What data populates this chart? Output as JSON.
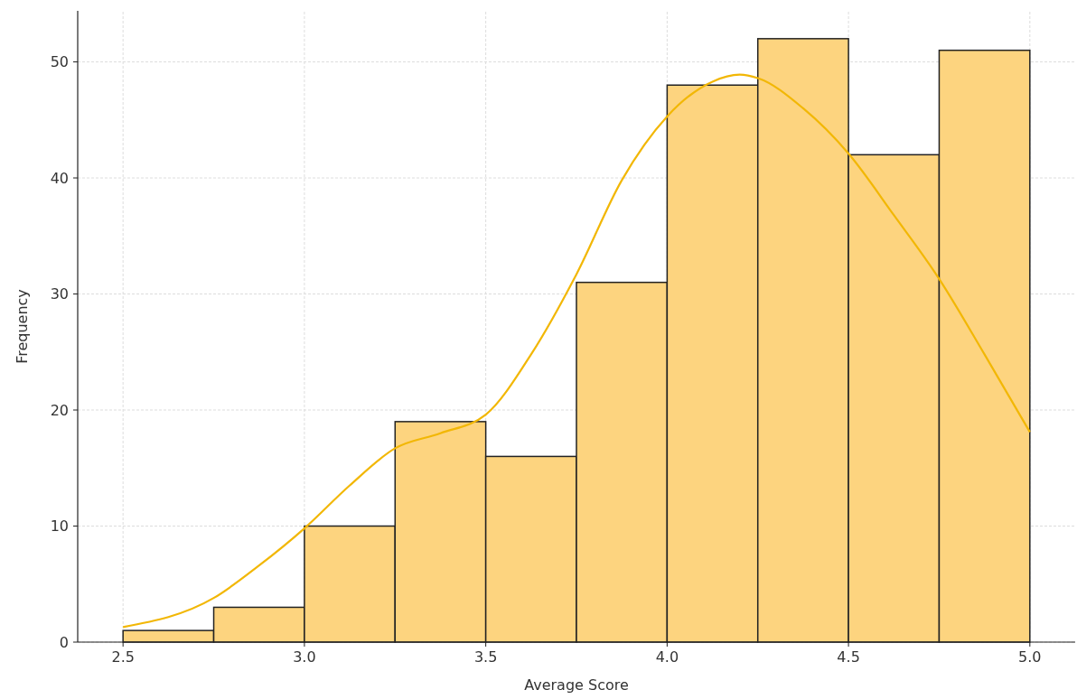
{
  "chart_data": {
    "type": "histogram",
    "xlabel": "Average Score",
    "ylabel": "Frequency",
    "bins": [
      2.5,
      2.75,
      3.0,
      3.25,
      3.5,
      3.75,
      4.0,
      4.25,
      4.5,
      4.75,
      5.0
    ],
    "values": [
      1,
      3,
      10,
      19,
      16,
      31,
      48,
      52,
      42,
      51
    ],
    "color": "#fdd47f",
    "series": [
      {
        "type": "line",
        "color": "#f2b705",
        "x": [
          2.5,
          2.75,
          2.875,
          3.0,
          3.125,
          3.25,
          3.375,
          3.5,
          3.625,
          3.75,
          3.875,
          4.0,
          4.125,
          4.2,
          4.25,
          4.375,
          4.5,
          4.625,
          4.75,
          4.875,
          5.0
        ],
        "values": [
          1.3,
          3.8,
          6.6,
          9.8,
          13.5,
          16.7,
          18.0,
          19.6,
          24.8,
          31.7,
          39.8,
          45.3,
          48.3,
          48.9,
          48.6,
          46.0,
          42.1,
          36.8,
          31.3,
          24.8,
          18.1
        ]
      }
    ],
    "xlim": [
      2.375,
      5.125
    ],
    "ylim": [
      0,
      54.4
    ],
    "xticks": [
      2.5,
      {
        "value": 3,
        "label": "3.0"
      },
      3.5,
      {
        "value": 4,
        "label": "4.0"
      },
      4.5,
      {
        "value": 5,
        "label": "5.0"
      }
    ],
    "yticks": [
      0,
      10,
      20,
      30,
      40,
      50
    ],
    "grid": true
  }
}
